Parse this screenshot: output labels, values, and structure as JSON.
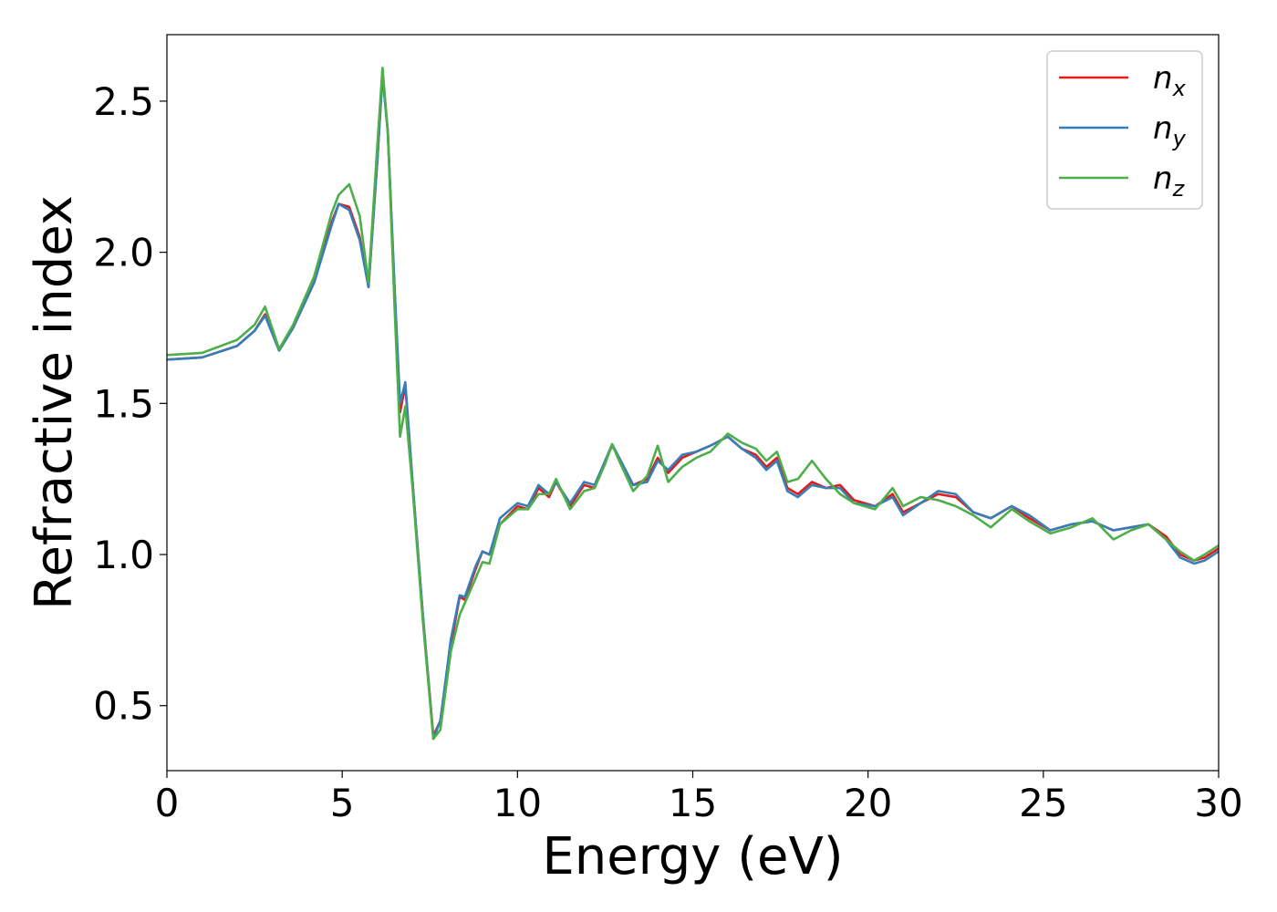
{
  "chart_data": {
    "type": "line",
    "title": "",
    "xlabel": "Energy (eV)",
    "ylabel": "Refractive index",
    "xlim": [
      0,
      30
    ],
    "ylim": [
      0.285,
      2.72
    ],
    "xticks": [
      0,
      5,
      10,
      15,
      20,
      25,
      30
    ],
    "yticks": [
      0.5,
      1.0,
      1.5,
      2.0,
      2.5
    ],
    "xtick_labels": [
      "0",
      "5",
      "10",
      "15",
      "20",
      "25",
      "30"
    ],
    "ytick_labels": [
      "0.5",
      "1.0",
      "1.5",
      "2.0",
      "2.5"
    ],
    "grid": false,
    "legend_position": "top-right",
    "series": [
      {
        "name": "n_x",
        "label_base": "n",
        "label_sub": "x",
        "color": "#e41a1c",
        "points": [
          [
            0,
            1.645
          ],
          [
            1,
            1.652
          ],
          [
            2,
            1.69
          ],
          [
            2.5,
            1.74
          ],
          [
            2.8,
            1.795
          ],
          [
            3.2,
            1.675
          ],
          [
            3.6,
            1.75
          ],
          [
            4.2,
            1.9
          ],
          [
            4.7,
            2.1
          ],
          [
            4.9,
            2.16
          ],
          [
            5.2,
            2.15
          ],
          [
            5.5,
            2.05
          ],
          [
            5.75,
            1.885
          ],
          [
            6.0,
            2.3
          ],
          [
            6.15,
            2.59
          ],
          [
            6.3,
            2.4
          ],
          [
            6.5,
            1.85
          ],
          [
            6.65,
            1.47
          ],
          [
            6.8,
            1.56
          ],
          [
            7.0,
            1.25
          ],
          [
            7.3,
            0.8
          ],
          [
            7.6,
            0.4
          ],
          [
            7.8,
            0.45
          ],
          [
            8.1,
            0.7
          ],
          [
            8.35,
            0.86
          ],
          [
            8.5,
            0.85
          ],
          [
            8.8,
            0.95
          ],
          [
            9.0,
            1.01
          ],
          [
            9.2,
            1.0
          ],
          [
            9.5,
            1.1
          ],
          [
            10,
            1.16
          ],
          [
            10.3,
            1.15
          ],
          [
            10.6,
            1.22
          ],
          [
            10.9,
            1.19
          ],
          [
            11.1,
            1.24
          ],
          [
            11.5,
            1.16
          ],
          [
            11.9,
            1.23
          ],
          [
            12.2,
            1.22
          ],
          [
            12.5,
            1.31
          ],
          [
            12.7,
            1.36
          ],
          [
            12.9,
            1.32
          ],
          [
            13.3,
            1.23
          ],
          [
            13.7,
            1.25
          ],
          [
            14.0,
            1.32
          ],
          [
            14.3,
            1.27
          ],
          [
            14.7,
            1.32
          ],
          [
            15.1,
            1.34
          ],
          [
            15.5,
            1.36
          ],
          [
            16.0,
            1.39
          ],
          [
            16.4,
            1.35
          ],
          [
            16.8,
            1.33
          ],
          [
            17.1,
            1.29
          ],
          [
            17.4,
            1.32
          ],
          [
            17.7,
            1.22
          ],
          [
            18.0,
            1.2
          ],
          [
            18.4,
            1.24
          ],
          [
            18.8,
            1.22
          ],
          [
            19.2,
            1.23
          ],
          [
            19.6,
            1.18
          ],
          [
            20.2,
            1.16
          ],
          [
            20.7,
            1.2
          ],
          [
            21.0,
            1.14
          ],
          [
            21.5,
            1.17
          ],
          [
            22.0,
            1.2
          ],
          [
            22.5,
            1.19
          ],
          [
            23.0,
            1.14
          ],
          [
            23.5,
            1.12
          ],
          [
            24.1,
            1.16
          ],
          [
            24.6,
            1.12
          ],
          [
            25.2,
            1.08
          ],
          [
            25.8,
            1.1
          ],
          [
            26.4,
            1.11
          ],
          [
            27.0,
            1.08
          ],
          [
            27.5,
            1.09
          ],
          [
            28.0,
            1.1
          ],
          [
            28.5,
            1.06
          ],
          [
            28.9,
            1.0
          ],
          [
            29.3,
            0.98
          ],
          [
            29.6,
            0.99
          ],
          [
            30,
            1.02
          ]
        ]
      },
      {
        "name": "n_y",
        "label_base": "n",
        "label_sub": "y",
        "color": "#377eb8",
        "points": [
          [
            0,
            1.645
          ],
          [
            1,
            1.652
          ],
          [
            2,
            1.69
          ],
          [
            2.5,
            1.74
          ],
          [
            2.8,
            1.79
          ],
          [
            3.2,
            1.675
          ],
          [
            3.6,
            1.75
          ],
          [
            4.2,
            1.9
          ],
          [
            4.7,
            2.09
          ],
          [
            4.9,
            2.16
          ],
          [
            5.2,
            2.14
          ],
          [
            5.5,
            2.04
          ],
          [
            5.75,
            1.885
          ],
          [
            6.0,
            2.3
          ],
          [
            6.15,
            2.585
          ],
          [
            6.3,
            2.4
          ],
          [
            6.5,
            1.87
          ],
          [
            6.65,
            1.5
          ],
          [
            6.8,
            1.57
          ],
          [
            7.0,
            1.25
          ],
          [
            7.3,
            0.8
          ],
          [
            7.6,
            0.39
          ],
          [
            7.8,
            0.45
          ],
          [
            8.1,
            0.72
          ],
          [
            8.35,
            0.865
          ],
          [
            8.5,
            0.86
          ],
          [
            8.8,
            0.96
          ],
          [
            9.0,
            1.01
          ],
          [
            9.2,
            1.0
          ],
          [
            9.5,
            1.12
          ],
          [
            10,
            1.17
          ],
          [
            10.3,
            1.16
          ],
          [
            10.6,
            1.23
          ],
          [
            10.9,
            1.2
          ],
          [
            11.1,
            1.24
          ],
          [
            11.5,
            1.17
          ],
          [
            11.9,
            1.24
          ],
          [
            12.2,
            1.23
          ],
          [
            12.5,
            1.31
          ],
          [
            12.7,
            1.365
          ],
          [
            12.9,
            1.32
          ],
          [
            13.3,
            1.23
          ],
          [
            13.7,
            1.24
          ],
          [
            14.0,
            1.31
          ],
          [
            14.3,
            1.28
          ],
          [
            14.7,
            1.33
          ],
          [
            15.1,
            1.34
          ],
          [
            15.5,
            1.36
          ],
          [
            16.0,
            1.39
          ],
          [
            16.4,
            1.35
          ],
          [
            16.8,
            1.32
          ],
          [
            17.1,
            1.28
          ],
          [
            17.4,
            1.31
          ],
          [
            17.7,
            1.21
          ],
          [
            18.0,
            1.19
          ],
          [
            18.4,
            1.23
          ],
          [
            18.8,
            1.22
          ],
          [
            19.2,
            1.22
          ],
          [
            19.6,
            1.17
          ],
          [
            20.2,
            1.16
          ],
          [
            20.7,
            1.19
          ],
          [
            21.0,
            1.13
          ],
          [
            21.5,
            1.17
          ],
          [
            22.0,
            1.21
          ],
          [
            22.5,
            1.2
          ],
          [
            23.0,
            1.14
          ],
          [
            23.5,
            1.12
          ],
          [
            24.1,
            1.16
          ],
          [
            24.6,
            1.13
          ],
          [
            25.2,
            1.08
          ],
          [
            25.8,
            1.1
          ],
          [
            26.4,
            1.11
          ],
          [
            27.0,
            1.08
          ],
          [
            27.5,
            1.09
          ],
          [
            28.0,
            1.1
          ],
          [
            28.5,
            1.05
          ],
          [
            28.9,
            0.99
          ],
          [
            29.3,
            0.97
          ],
          [
            29.6,
            0.98
          ],
          [
            30,
            1.01
          ]
        ]
      },
      {
        "name": "n_z",
        "label_base": "n",
        "label_sub": "z",
        "color": "#4daf4a",
        "points": [
          [
            0,
            1.66
          ],
          [
            1,
            1.667
          ],
          [
            2,
            1.71
          ],
          [
            2.5,
            1.76
          ],
          [
            2.8,
            1.82
          ],
          [
            3.2,
            1.68
          ],
          [
            3.6,
            1.76
          ],
          [
            4.2,
            1.92
          ],
          [
            4.7,
            2.13
          ],
          [
            4.9,
            2.19
          ],
          [
            5.2,
            2.225
          ],
          [
            5.5,
            2.12
          ],
          [
            5.75,
            1.9
          ],
          [
            6.0,
            2.35
          ],
          [
            6.15,
            2.61
          ],
          [
            6.3,
            2.4
          ],
          [
            6.5,
            1.8
          ],
          [
            6.65,
            1.39
          ],
          [
            6.8,
            1.49
          ],
          [
            7.0,
            1.23
          ],
          [
            7.3,
            0.78
          ],
          [
            7.6,
            0.39
          ],
          [
            7.8,
            0.42
          ],
          [
            8.1,
            0.68
          ],
          [
            8.35,
            0.8
          ],
          [
            8.5,
            0.84
          ],
          [
            8.8,
            0.92
          ],
          [
            9.0,
            0.975
          ],
          [
            9.2,
            0.97
          ],
          [
            9.5,
            1.1
          ],
          [
            10,
            1.15
          ],
          [
            10.3,
            1.15
          ],
          [
            10.6,
            1.2
          ],
          [
            10.9,
            1.2
          ],
          [
            11.1,
            1.25
          ],
          [
            11.5,
            1.15
          ],
          [
            11.9,
            1.21
          ],
          [
            12.2,
            1.22
          ],
          [
            12.5,
            1.3
          ],
          [
            12.7,
            1.365
          ],
          [
            12.9,
            1.31
          ],
          [
            13.3,
            1.21
          ],
          [
            13.7,
            1.26
          ],
          [
            14.0,
            1.36
          ],
          [
            14.3,
            1.24
          ],
          [
            14.7,
            1.29
          ],
          [
            15.1,
            1.32
          ],
          [
            15.5,
            1.34
          ],
          [
            16.0,
            1.4
          ],
          [
            16.4,
            1.37
          ],
          [
            16.8,
            1.35
          ],
          [
            17.1,
            1.31
          ],
          [
            17.4,
            1.34
          ],
          [
            17.7,
            1.24
          ],
          [
            18.0,
            1.25
          ],
          [
            18.4,
            1.31
          ],
          [
            18.8,
            1.25
          ],
          [
            19.2,
            1.2
          ],
          [
            19.6,
            1.17
          ],
          [
            20.2,
            1.15
          ],
          [
            20.7,
            1.22
          ],
          [
            21.0,
            1.16
          ],
          [
            21.5,
            1.19
          ],
          [
            22.0,
            1.18
          ],
          [
            22.5,
            1.16
          ],
          [
            23.0,
            1.13
          ],
          [
            23.5,
            1.09
          ],
          [
            24.1,
            1.15
          ],
          [
            24.6,
            1.11
          ],
          [
            25.2,
            1.07
          ],
          [
            25.8,
            1.09
          ],
          [
            26.4,
            1.12
          ],
          [
            27.0,
            1.05
          ],
          [
            27.5,
            1.08
          ],
          [
            28.0,
            1.1
          ],
          [
            28.5,
            1.05
          ],
          [
            28.9,
            1.01
          ],
          [
            29.3,
            0.98
          ],
          [
            29.6,
            1.0
          ],
          [
            30,
            1.03
          ]
        ]
      }
    ]
  }
}
